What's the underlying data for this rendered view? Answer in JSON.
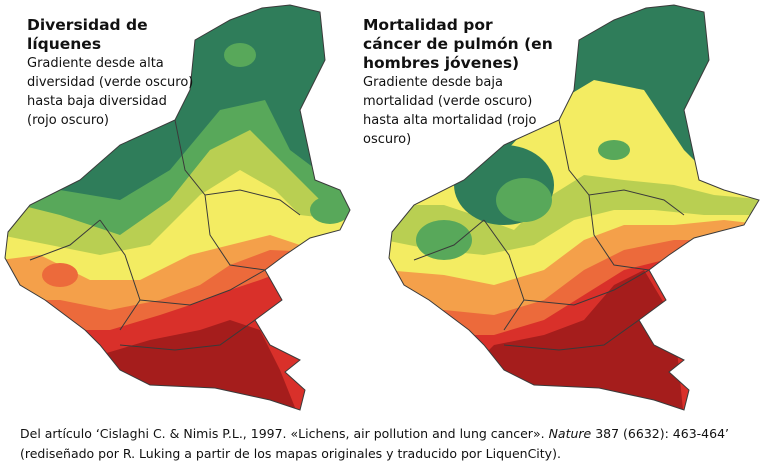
{
  "left_map": {
    "title": "Diversidad de líquenes",
    "description": "Gradiente desde alta diversidad (verde oscuro) hasta baja diversidad (rojo oscuro)"
  },
  "right_map": {
    "title": "Mortalidad por cáncer de pulmón (en hombres jóvenes)",
    "description": "Gradiente desde baja mortalidad (verde oscuro) hasta alta mortalidad (rojo oscuro)"
  },
  "citation": {
    "prefix": "Del artículo ‘Cislaghi C. & Nimis P.L., 1997. «Lichens, air pollution and lung cancer».",
    "journal": "Nature",
    "suffix": "387 (6632): 463-464’ (rediseñado por R. Luking a partir de los mapas originales y traducido por LiquenCity)."
  },
  "colors": {
    "dark_green": "#2f7d5a",
    "green": "#58a85a",
    "yellow_green": "#b9cf52",
    "yellow": "#f3ec62",
    "orange": "#f4a04a",
    "orange_red": "#ec6a3b",
    "red": "#d9302a",
    "dark_red": "#a51d1c",
    "border": "#3a3a3a"
  }
}
